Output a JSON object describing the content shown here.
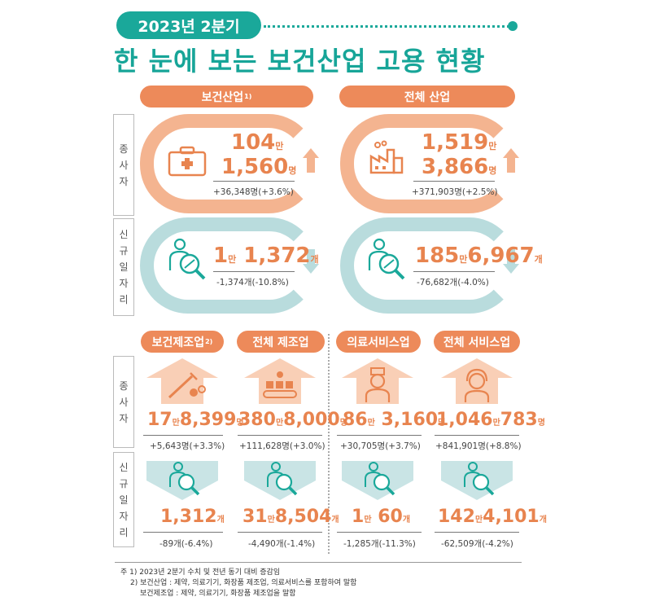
{
  "header": {
    "period": "2023년 2분기",
    "title": "한 눈에 보는 보건산업 고용 현황"
  },
  "top": {
    "left_label": "보건산업",
    "left_label_sup": "1)",
    "right_label": "전체 산업"
  },
  "side": {
    "employees": [
      "종",
      "사",
      "자"
    ],
    "new_jobs": [
      "신",
      "규",
      "일",
      "자",
      "리"
    ]
  },
  "health_employees": {
    "line1": "104",
    "unit1": "만",
    "line2": "1,560",
    "unit2": "명",
    "change": "+36,348명(+3.6%)"
  },
  "all_employees": {
    "line1": "1,519",
    "unit1": "만",
    "line2": "3,866",
    "unit2": "명",
    "change": "+371,903명(+2.5%)"
  },
  "health_jobs": {
    "a": "1",
    "unit_a": "만",
    "b": "1,372",
    "unit_b": "개",
    "change": "-1,374개(-10.8%)"
  },
  "all_jobs": {
    "a": "185",
    "unit_a": "만",
    "b": "6,967",
    "unit_b": "개",
    "change": "-76,682개(-4.0%)"
  },
  "sectors": [
    {
      "label": "보건제조업",
      "sup": "2)",
      "emp": {
        "a": "17",
        "ua": "만",
        "b": "8,399",
        "ub": "명"
      },
      "emp_change": "+5,643명(+3.3%)",
      "jobs": {
        "a": "",
        "ua": "",
        "b": "1,312",
        "ub": "개"
      },
      "jobs_change": "-89개(-6.4%)",
      "icon": "syringe-pills-icon"
    },
    {
      "label": "전체 제조업",
      "sup": "",
      "emp": {
        "a": "380",
        "ua": "만",
        "b": "8,000",
        "ub": "명"
      },
      "emp_change": "+111,628명(+3.0%)",
      "jobs": {
        "a": "31",
        "ua": "만",
        "b": "8,504",
        "ub": "개"
      },
      "jobs_change": "-4,490개(-1.4%)",
      "icon": "conveyor-icon"
    },
    {
      "label": "의료서비스업",
      "sup": "",
      "emp": {
        "a": "86",
        "ua": "만",
        "b": "3,160",
        "ub": "명"
      },
      "emp_change": "+30,705명(+3.7%)",
      "jobs": {
        "a": "1",
        "ua": "만",
        "b": "60",
        "ub": "개"
      },
      "jobs_change": "-1,285개(-11.3%)",
      "icon": "nurse-icon"
    },
    {
      "label": "전체 서비스업",
      "sup": "",
      "emp": {
        "a": "1,046",
        "ua": "만",
        "b": "783",
        "ub": "명"
      },
      "emp_change": "+841,901명(+8.8%)",
      "jobs": {
        "a": "142",
        "ua": "만",
        "b": "4,101",
        "ub": "개"
      },
      "jobs_change": "-62,509개(-4.2%)",
      "icon": "headset-icon"
    }
  ],
  "footnotes": {
    "line1": "주 1) 2023년 2분기 수치 및 전년 동기 대비 증감임",
    "line2": "2) 보건산업 : 제약, 의료기기, 화장품 제조업, 의료서비스를 포함하여 말함",
    "line3": "보건제조업 : 제약, 의료기기, 화장품 제조업을 말함"
  },
  "colors": {
    "teal": "#1aa89a",
    "orange": "#ed8a5a",
    "light_orange": "#f4b490",
    "light_teal": "#b9dcdd"
  }
}
